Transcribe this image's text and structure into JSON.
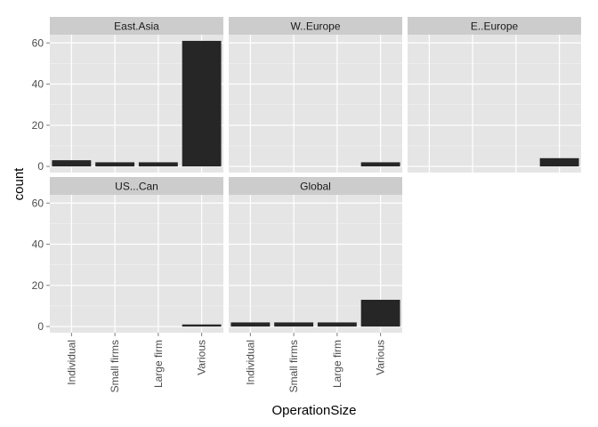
{
  "chart_data": {
    "type": "bar",
    "xlabel": "OperationSize",
    "ylabel": "count",
    "categories": [
      "Individual",
      "Small firms",
      "Large firm",
      "Various"
    ],
    "y_ticks": [
      0,
      20,
      40,
      60
    ],
    "ylim": [
      -3,
      64
    ],
    "grid": true,
    "facets": [
      {
        "name": "East.Asia",
        "values": [
          3,
          2,
          2,
          61
        ]
      },
      {
        "name": "W..Europe",
        "values": [
          0,
          0,
          0,
          2
        ]
      },
      {
        "name": "E..Europe",
        "values": [
          0,
          0,
          0,
          4
        ]
      },
      {
        "name": "US...Can",
        "values": [
          0,
          0,
          0,
          1
        ]
      },
      {
        "name": "Global",
        "values": [
          2,
          2,
          2,
          13
        ]
      }
    ],
    "colors": {
      "panel_bg": "#e5e5e5",
      "strip_bg": "#cccccc",
      "grid_major": "#ffffff",
      "grid_minor": "#f2f2f2",
      "bar": "#262626"
    }
  }
}
